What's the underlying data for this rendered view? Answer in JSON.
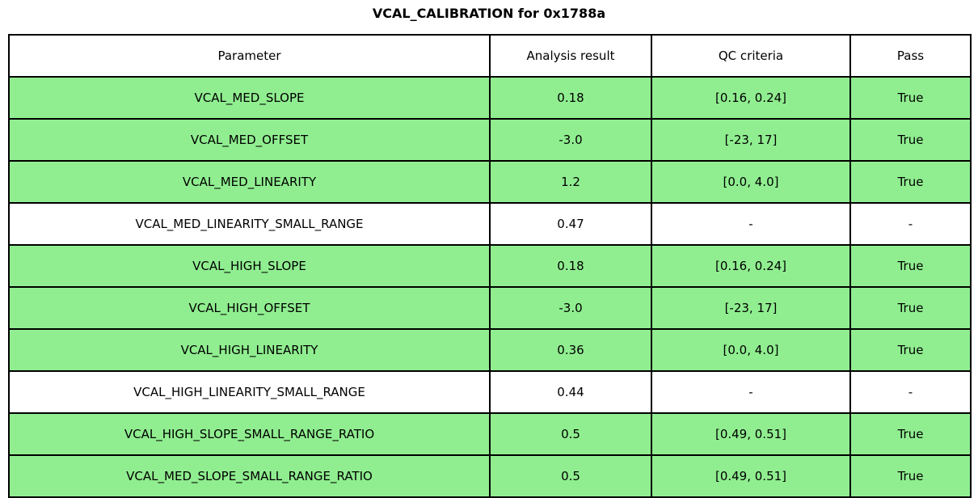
{
  "title": "VCAL_CALIBRATION for 0x1788a",
  "colors": {
    "pass_row_bg": "#90ee90",
    "neutral_row_bg": "#ffffff",
    "border": "#000000",
    "text": "#000000"
  },
  "chart_data": {
    "type": "table",
    "title": "VCAL_CALIBRATION for 0x1788a",
    "columns": [
      "Parameter",
      "Analysis result",
      "QC criteria",
      "Pass"
    ],
    "rows": [
      {
        "parameter": "VCAL_MED_SLOPE",
        "analysis_result": "0.18",
        "qc_criteria": "[0.16, 0.24]",
        "pass": "True",
        "highlight": true
      },
      {
        "parameter": "VCAL_MED_OFFSET",
        "analysis_result": "-3.0",
        "qc_criteria": "[-23, 17]",
        "pass": "True",
        "highlight": true
      },
      {
        "parameter": "VCAL_MED_LINEARITY",
        "analysis_result": "1.2",
        "qc_criteria": "[0.0, 4.0]",
        "pass": "True",
        "highlight": true
      },
      {
        "parameter": "VCAL_MED_LINEARITY_SMALL_RANGE",
        "analysis_result": "0.47",
        "qc_criteria": "-",
        "pass": "-",
        "highlight": false
      },
      {
        "parameter": "VCAL_HIGH_SLOPE",
        "analysis_result": "0.18",
        "qc_criteria": "[0.16, 0.24]",
        "pass": "True",
        "highlight": true
      },
      {
        "parameter": "VCAL_HIGH_OFFSET",
        "analysis_result": "-3.0",
        "qc_criteria": "[-23, 17]",
        "pass": "True",
        "highlight": true
      },
      {
        "parameter": "VCAL_HIGH_LINEARITY",
        "analysis_result": "0.36",
        "qc_criteria": "[0.0, 4.0]",
        "pass": "True",
        "highlight": true
      },
      {
        "parameter": "VCAL_HIGH_LINEARITY_SMALL_RANGE",
        "analysis_result": "0.44",
        "qc_criteria": "-",
        "pass": "-",
        "highlight": false
      },
      {
        "parameter": "VCAL_HIGH_SLOPE_SMALL_RANGE_RATIO",
        "analysis_result": "0.5",
        "qc_criteria": "[0.49, 0.51]",
        "pass": "True",
        "highlight": true
      },
      {
        "parameter": "VCAL_MED_SLOPE_SMALL_RANGE_RATIO",
        "analysis_result": "0.5",
        "qc_criteria": "[0.49, 0.51]",
        "pass": "True",
        "highlight": true
      }
    ],
    "layout": {
      "legend": "none",
      "grid": "full cell borders",
      "column_width_fractions": [
        0.5,
        0.168,
        0.207,
        0.125
      ]
    }
  }
}
